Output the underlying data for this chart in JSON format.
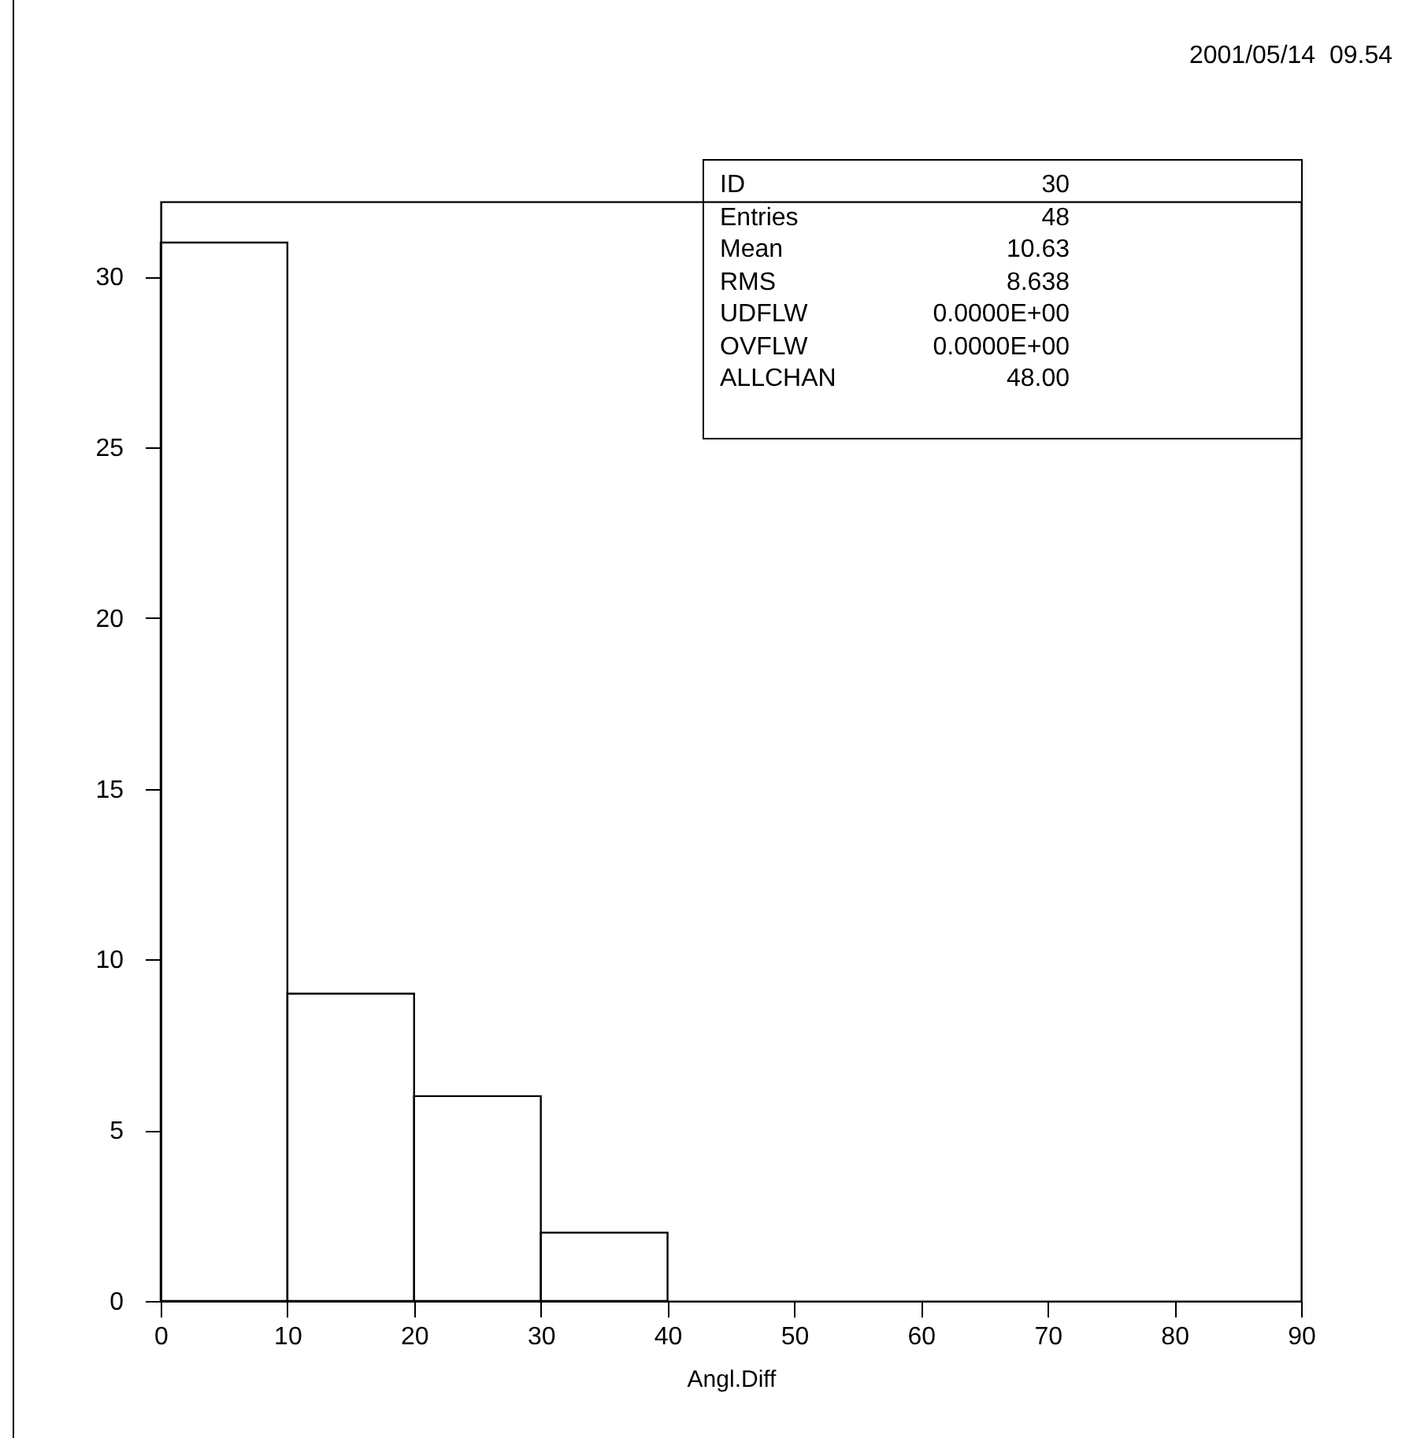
{
  "chart_data": {
    "type": "histogram",
    "xlabel": "Angl.Diff",
    "bins": [
      0,
      10,
      20,
      30,
      40
    ],
    "values": [
      31,
      9,
      6,
      2
    ],
    "color": "#000000",
    "xlim": [
      0,
      90
    ],
    "xticks": [
      0,
      10,
      20,
      30,
      40,
      50,
      60,
      70,
      80,
      90
    ],
    "ylim": [
      0,
      32.2
    ],
    "yticks": [
      0,
      5,
      10,
      15,
      20,
      25,
      30
    ],
    "grid": false,
    "annotations": [
      "2001/05/14  09.54",
      "ID 30",
      "Entries 48",
      "Mean 10.63",
      "RMS 8.638",
      "UDFLW 0.0000E+00",
      "OVFLW 0.0000E+00",
      "ALLCHAN 48.00"
    ]
  }
}
